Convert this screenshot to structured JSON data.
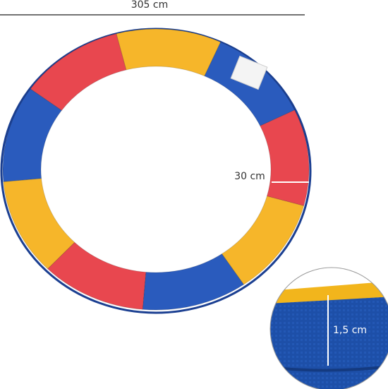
{
  "dimensions": {
    "diameter": "305 cm",
    "pad_width": "30 cm",
    "pad_thickness": "1,5 cm"
  }
}
